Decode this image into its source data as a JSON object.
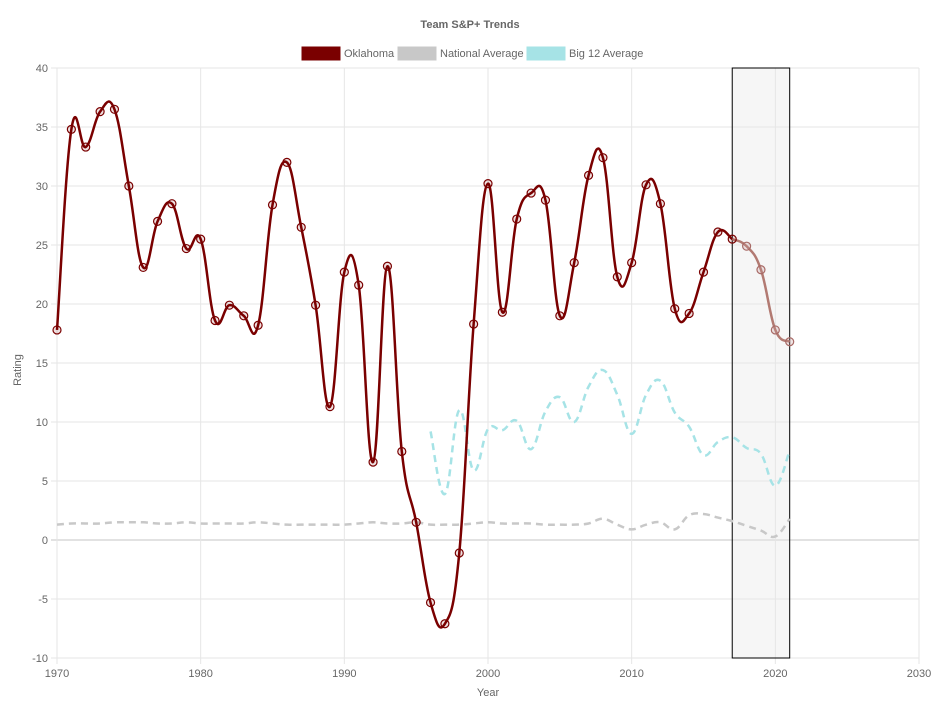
{
  "chart_data": {
    "type": "line",
    "title": "Team S&P+ Trends",
    "xlabel": "Year",
    "ylabel": "Rating",
    "xlim": [
      1970,
      2030
    ],
    "ylim": [
      -10,
      40
    ],
    "x_ticks": [
      1970,
      1980,
      1990,
      2000,
      2010,
      2020,
      2030
    ],
    "y_ticks": [
      -10,
      -5,
      0,
      5,
      10,
      15,
      20,
      25,
      30,
      35,
      40
    ],
    "grid": true,
    "legend_position": "top",
    "highlight_range": [
      2017,
      2021
    ],
    "series": [
      {
        "name": "Oklahoma",
        "color": "#7a0000",
        "style": "solid-markers",
        "x": [
          1970,
          1971,
          1972,
          1973,
          1974,
          1975,
          1976,
          1977,
          1978,
          1979,
          1980,
          1981,
          1982,
          1983,
          1984,
          1985,
          1986,
          1987,
          1988,
          1989,
          1990,
          1991,
          1992,
          1993,
          1994,
          1995,
          1996,
          1997,
          1998,
          1999,
          2000,
          2001,
          2002,
          2003,
          2004,
          2005,
          2006,
          2007,
          2008,
          2009,
          2010,
          2011,
          2012,
          2013,
          2014,
          2015,
          2016,
          2017,
          2018,
          2019,
          2020,
          2021
        ],
        "values": [
          17.8,
          34.8,
          33.3,
          36.3,
          36.5,
          30.0,
          23.1,
          27.0,
          28.5,
          24.7,
          25.5,
          18.6,
          19.9,
          19.0,
          18.2,
          28.4,
          32.0,
          26.5,
          19.9,
          11.3,
          22.7,
          21.6,
          6.6,
          23.2,
          7.5,
          1.5,
          -5.3,
          -7.1,
          -1.1,
          18.3,
          30.2,
          19.3,
          27.2,
          29.4,
          28.8,
          19.0,
          23.5,
          30.9,
          32.4,
          22.3,
          23.5,
          30.1,
          28.5,
          19.6,
          19.2,
          22.7,
          26.1,
          25.5,
          24.9,
          22.9,
          17.8,
          16.8
        ]
      },
      {
        "name": "National Average",
        "color": "#c8c8c8",
        "style": "dashed",
        "x": [
          1970,
          1971,
          1972,
          1973,
          1974,
          1975,
          1976,
          1977,
          1978,
          1979,
          1980,
          1981,
          1982,
          1983,
          1984,
          1985,
          1986,
          1987,
          1988,
          1989,
          1990,
          1991,
          1992,
          1993,
          1994,
          1995,
          1996,
          1997,
          1998,
          1999,
          2000,
          2001,
          2002,
          2003,
          2004,
          2005,
          2006,
          2007,
          2008,
          2009,
          2010,
          2011,
          2012,
          2013,
          2014,
          2015,
          2016,
          2017,
          2018,
          2019,
          2020,
          2021
        ],
        "values": [
          1.3,
          1.4,
          1.4,
          1.4,
          1.5,
          1.5,
          1.5,
          1.4,
          1.4,
          1.5,
          1.4,
          1.4,
          1.4,
          1.4,
          1.5,
          1.4,
          1.3,
          1.3,
          1.3,
          1.3,
          1.3,
          1.4,
          1.5,
          1.4,
          1.4,
          1.5,
          1.3,
          1.3,
          1.3,
          1.4,
          1.5,
          1.4,
          1.4,
          1.4,
          1.3,
          1.3,
          1.3,
          1.4,
          1.8,
          1.3,
          0.9,
          1.3,
          1.5,
          0.9,
          2.1,
          2.2,
          1.9,
          1.6,
          1.2,
          0.8,
          0.3,
          1.8
        ]
      },
      {
        "name": "Big 12 Average",
        "color": "#a6e3e6",
        "style": "dashed",
        "x": [
          1996,
          1997,
          1998,
          1999,
          2000,
          2001,
          2002,
          2003,
          2004,
          2005,
          2006,
          2007,
          2008,
          2009,
          2010,
          2011,
          2012,
          2013,
          2014,
          2015,
          2016,
          2017,
          2018,
          2019,
          2020,
          2021
        ],
        "values": [
          9.2,
          3.9,
          11.0,
          5.9,
          9.4,
          9.3,
          10.1,
          7.7,
          10.9,
          12.1,
          10.0,
          13.0,
          14.4,
          12.3,
          9.0,
          12.3,
          13.5,
          10.8,
          9.6,
          7.2,
          8.3,
          8.7,
          7.8,
          7.3,
          4.6,
          7.6
        ]
      }
    ]
  }
}
